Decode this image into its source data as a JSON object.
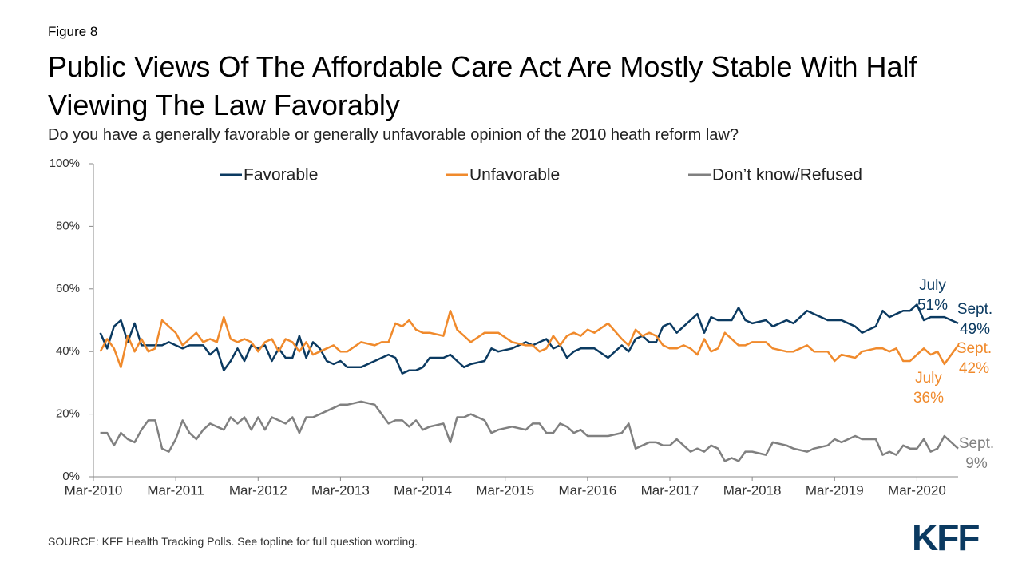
{
  "chart_data": {
    "type": "line",
    "figure_label": "Figure 8",
    "title": "Public Views Of The Affordable Care Act Are Mostly Stable With Half Viewing The Law Favorably",
    "subtitle": "Do you have a generally favorable or generally unfavorable opinion of the 2010 heath reform law?",
    "source": "SOURCE: KFF Health Tracking Polls. See topline for full question wording.",
    "logo": "KFF",
    "x": [
      "Apr-2010",
      "May-2010",
      "Jun-2010",
      "Jul-2010",
      "Aug-2010",
      "Sep-2010",
      "Oct-2010",
      "Nov-2010",
      "Dec-2010",
      "Jan-2011",
      "Feb-2011",
      "Mar-2011",
      "Apr-2011",
      "May-2011",
      "Jun-2011",
      "Jul-2011",
      "Aug-2011",
      "Sep-2011",
      "Oct-2011",
      "Nov-2011",
      "Dec-2011",
      "Jan-2012",
      "Feb-2012",
      "Mar-2012",
      "Apr-2012",
      "May-2012",
      "Jun-2012",
      "Jul-2012",
      "Aug-2012",
      "Sep-2012",
      "Oct-2012",
      "Nov-2012",
      "Dec-2012",
      "Jan-2013",
      "Feb-2013",
      "Mar-2013",
      "Apr-2013",
      "Jun-2013",
      "Aug-2013",
      "Sep-2013",
      "Oct-2013",
      "Nov-2013",
      "Dec-2013",
      "Jan-2014",
      "Feb-2014",
      "Mar-2014",
      "Apr-2014",
      "Jun-2014",
      "Jul-2014",
      "Aug-2014",
      "Sep-2014",
      "Oct-2014",
      "Dec-2014",
      "Jan-2015",
      "Feb-2015",
      "Apr-2015",
      "Jun-2015",
      "Jul-2015",
      "Aug-2015",
      "Sep-2015",
      "Oct-2015",
      "Nov-2015",
      "Dec-2015",
      "Jan-2016",
      "Feb-2016",
      "Mar-2016",
      "Apr-2016",
      "Jun-2016",
      "Aug-2016",
      "Sep-2016",
      "Oct-2016",
      "Nov-2016",
      "Dec-2016",
      "Jan-2017",
      "Feb-2017",
      "Mar-2017",
      "Apr-2017",
      "May-2017",
      "Jun-2017",
      "Jul-2017",
      "Aug-2017",
      "Sep-2017",
      "Oct-2017",
      "Nov-2017",
      "Dec-2017",
      "Jan-2018",
      "Feb-2018",
      "Mar-2018",
      "May-2018",
      "Jun-2018",
      "Aug-2018",
      "Sep-2018",
      "Nov-2018",
      "Dec-2018",
      "Feb-2019",
      "Mar-2019",
      "Apr-2019",
      "Jun-2019",
      "Jul-2019",
      "Sep-2019",
      "Oct-2019",
      "Nov-2019",
      "Dec-2019",
      "Jan-2020",
      "Feb-2020",
      "Mar-2020",
      "Apr-2020",
      "May-2020",
      "Jun-2020",
      "Jul-2020",
      "Sep-2020"
    ],
    "series": [
      {
        "name": "Favorable",
        "color": "#0b3a61",
        "values": [
          46,
          41,
          48,
          50,
          43,
          49,
          42,
          42,
          42,
          42,
          43,
          42,
          41,
          42,
          42,
          42,
          39,
          41,
          34,
          37,
          41,
          37,
          42,
          41,
          42,
          37,
          41,
          38,
          38,
          45,
          38,
          43,
          41,
          37,
          36,
          37,
          35,
          35,
          37,
          38,
          39,
          38,
          33,
          34,
          34,
          35,
          38,
          38,
          39,
          37,
          35,
          36,
          37,
          41,
          40,
          41,
          43,
          42,
          43,
          44,
          41,
          42,
          38,
          40,
          41,
          41,
          41,
          38,
          42,
          40,
          44,
          45,
          43,
          43,
          48,
          49,
          46,
          48,
          50,
          52,
          46,
          51,
          50,
          50,
          50,
          54,
          50,
          49,
          50,
          48,
          50,
          49,
          53,
          52,
          50,
          50,
          50,
          48,
          46,
          48,
          53,
          51,
          52,
          53,
          53,
          55,
          50,
          51,
          51,
          51,
          49
        ]
      },
      {
        "name": "Unfavorable",
        "color": "#f08a2c",
        "values": [
          40,
          44,
          41,
          35,
          45,
          40,
          44,
          40,
          41,
          50,
          48,
          46,
          42,
          44,
          46,
          43,
          44,
          43,
          51,
          44,
          43,
          44,
          43,
          40,
          43,
          44,
          40,
          44,
          43,
          40,
          43,
          39,
          40,
          41,
          42,
          40,
          40,
          43,
          42,
          43,
          43,
          49,
          48,
          50,
          47,
          46,
          46,
          45,
          53,
          47,
          45,
          43,
          46,
          46,
          46,
          43,
          42,
          42,
          40,
          41,
          45,
          42,
          45,
          46,
          45,
          47,
          46,
          49,
          44,
          42,
          47,
          45,
          46,
          45,
          42,
          41,
          41,
          42,
          41,
          39,
          44,
          40,
          41,
          46,
          44,
          42,
          42,
          43,
          43,
          41,
          40,
          40,
          42,
          40,
          40,
          37,
          39,
          38,
          40,
          41,
          41,
          40,
          41,
          37,
          37,
          39,
          41,
          39,
          40,
          36,
          42
        ]
      },
      {
        "name": "Don’t know/Refused",
        "color": "#808080",
        "values": [
          14,
          14,
          10,
          14,
          12,
          11,
          15,
          18,
          18,
          9,
          8,
          12,
          18,
          14,
          12,
          15,
          17,
          16,
          15,
          19,
          17,
          19,
          15,
          19,
          15,
          19,
          18,
          17,
          19,
          14,
          19,
          19,
          20,
          21,
          22,
          23,
          23,
          24,
          23,
          20,
          17,
          18,
          18,
          16,
          18,
          15,
          16,
          17,
          11,
          19,
          19,
          20,
          18,
          14,
          15,
          16,
          15,
          17,
          17,
          14,
          14,
          17,
          16,
          14,
          15,
          13,
          13,
          13,
          14,
          17,
          9,
          10,
          11,
          11,
          10,
          10,
          12,
          10,
          8,
          9,
          8,
          10,
          9,
          5,
          6,
          5,
          8,
          8,
          7,
          11,
          10,
          9,
          8,
          9,
          10,
          12,
          11,
          13,
          12,
          12,
          7,
          8,
          7,
          10,
          9,
          9,
          12,
          8,
          9,
          13,
          9
        ]
      }
    ],
    "xlim": [
      "Mar-2010",
      "Sep-2020"
    ],
    "xticks": [
      "Mar-2010",
      "Mar-2011",
      "Mar-2012",
      "Mar-2013",
      "Mar-2014",
      "Mar-2015",
      "Mar-2016",
      "Mar-2017",
      "Mar-2018",
      "Mar-2019",
      "Mar-2020"
    ],
    "ylim": [
      0,
      100
    ],
    "yticks": [
      {
        "value": 0,
        "label": "0%"
      },
      {
        "value": 20,
        "label": "20%"
      },
      {
        "value": 40,
        "label": "40%"
      },
      {
        "value": 60,
        "label": "60%"
      },
      {
        "value": 80,
        "label": "80%"
      },
      {
        "value": 100,
        "label": "100%"
      }
    ],
    "legend": "top",
    "annotations": [
      {
        "lines": [
          "July",
          "51%"
        ],
        "color": "#0b3a61"
      },
      {
        "lines": [
          "Sept.",
          "49%"
        ],
        "color": "#0b3a61"
      },
      {
        "lines": [
          "Sept.",
          "42%"
        ],
        "color": "#f08a2c"
      },
      {
        "lines": [
          "July",
          "36%"
        ],
        "color": "#f08a2c"
      },
      {
        "lines": [
          "Sept.",
          "9%"
        ],
        "color": "#808080"
      }
    ]
  }
}
